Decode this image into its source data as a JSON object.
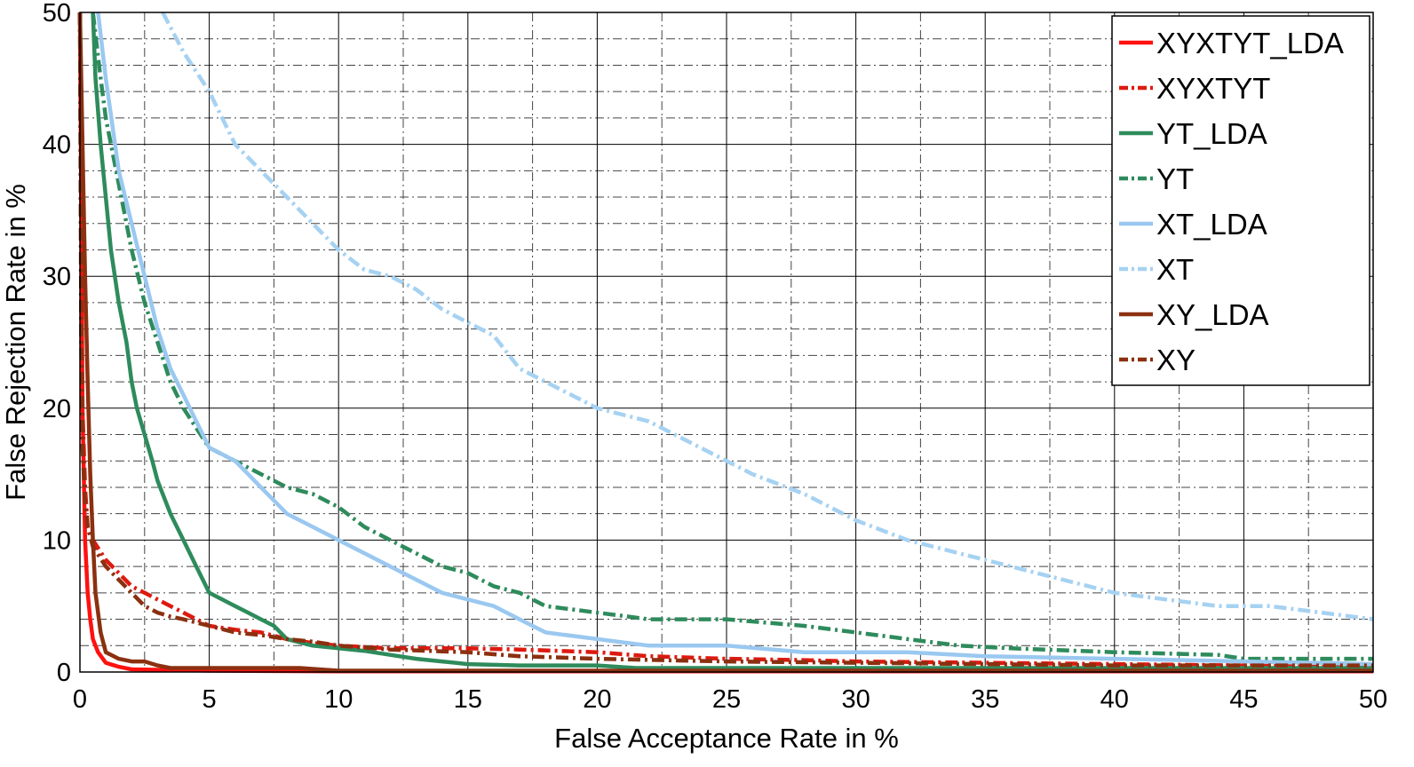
{
  "chart_data": {
    "type": "line",
    "title": "",
    "xlabel": "False Acceptance Rate in %",
    "ylabel": "False Rejection Rate in %",
    "xlim": [
      0,
      50
    ],
    "ylim": [
      0,
      50
    ],
    "xticks": [
      0,
      5,
      10,
      15,
      20,
      25,
      30,
      35,
      40,
      45,
      50
    ],
    "yticks": [
      0,
      10,
      20,
      30,
      40,
      50
    ],
    "grid": true,
    "legend_position": "top-right",
    "series": [
      {
        "name": "XYXTYT_LDA",
        "color": "#ff1010",
        "style": "solid",
        "x": [
          0,
          0.05,
          0.1,
          0.2,
          0.3,
          0.4,
          0.5,
          0.7,
          1.0,
          1.5,
          2.0,
          5.0,
          10,
          20,
          30,
          40,
          50
        ],
        "y": [
          50,
          35,
          20,
          10,
          6,
          4,
          2.5,
          1.5,
          0.7,
          0.4,
          0.2,
          0.1,
          0.05,
          0.05,
          0.05,
          0.05,
          0.05
        ]
      },
      {
        "name": "XYXTYT",
        "color": "#dd1a10",
        "style": "dashdot",
        "x": [
          0,
          0.05,
          0.1,
          0.2,
          0.3,
          0.5,
          1.0,
          1.5,
          2.0,
          2.5,
          3.0,
          3.5,
          4.0,
          5.0,
          6.0,
          7.0,
          8.0,
          9.0,
          10,
          12,
          15,
          17,
          20,
          22,
          25,
          28,
          30,
          35,
          40,
          45,
          50
        ],
        "y": [
          50,
          30,
          20,
          14,
          11,
          10,
          8.5,
          7.5,
          6.5,
          6,
          5.5,
          5,
          4.5,
          3.5,
          3.2,
          3,
          2.5,
          2.2,
          2,
          1.8,
          1.8,
          1.7,
          1.5,
          1.2,
          1,
          0.9,
          0.8,
          0.7,
          0.6,
          0.5,
          0.5
        ]
      },
      {
        "name": "YT_LDA",
        "color": "#2e8b5c",
        "style": "solid",
        "x": [
          0.5,
          0.6,
          0.8,
          1.0,
          1.2,
          1.5,
          1.8,
          2.0,
          2.2,
          2.5,
          2.8,
          3.0,
          3.2,
          3.5,
          4.0,
          4.5,
          5.0,
          5.5,
          6.0,
          6.5,
          7.0,
          7.5,
          8.0,
          9.0,
          10,
          11,
          12,
          13,
          14,
          15,
          17,
          20,
          21.5,
          25,
          30,
          35,
          40,
          45,
          50
        ],
        "y": [
          50,
          45,
          40,
          36,
          32,
          28,
          25,
          22,
          20,
          18,
          16,
          14.5,
          13.5,
          12,
          10,
          8,
          6,
          5.5,
          5,
          4.5,
          4,
          3.5,
          2.5,
          2,
          1.8,
          1.6,
          1.3,
          1.0,
          0.8,
          0.6,
          0.5,
          0.5,
          0.3,
          0.3,
          0.3,
          0.3,
          0.3,
          0.3,
          0.3
        ]
      },
      {
        "name": "YT",
        "color": "#2e8b5c",
        "style": "dashdot",
        "x": [
          0.5,
          0.8,
          1.0,
          1.5,
          2.0,
          2.5,
          3.0,
          3.5,
          4.0,
          4.5,
          5.0,
          5.5,
          6.0,
          6.5,
          7.0,
          7.5,
          8.0,
          9.0,
          10,
          11,
          12,
          13,
          14,
          15,
          16,
          17,
          18,
          20,
          22,
          25,
          28,
          30,
          32,
          34,
          36,
          40,
          44,
          45,
          50
        ],
        "y": [
          50,
          45,
          42,
          37,
          32,
          28,
          25,
          22,
          20,
          18.5,
          17,
          16.5,
          16,
          15.5,
          15,
          14.5,
          14,
          13.5,
          12.5,
          11,
          10,
          9,
          8,
          7.5,
          6.5,
          6,
          5,
          4.5,
          4,
          4,
          3.5,
          3,
          2.5,
          2,
          1.8,
          1.5,
          1.3,
          1.0,
          1.0
        ]
      },
      {
        "name": "XT_LDA",
        "color": "#9ac8f0",
        "style": "solid",
        "x": [
          0.7,
          1.0,
          1.5,
          2.0,
          2.5,
          3.0,
          3.5,
          4.0,
          4.5,
          5.0,
          5.5,
          6.0,
          6.5,
          7.0,
          7.5,
          8.0,
          9.0,
          10,
          11,
          12,
          13,
          14,
          15,
          16,
          17,
          18,
          20,
          22,
          25,
          28,
          30,
          32,
          35,
          40,
          45,
          50
        ],
        "y": [
          50,
          45,
          38,
          34,
          30,
          26,
          23,
          21,
          19,
          17,
          16.5,
          16,
          15,
          14,
          13,
          12,
          11,
          10,
          9,
          8,
          7,
          6,
          5.5,
          5,
          4,
          3,
          2.5,
          2,
          2,
          1.5,
          1.5,
          1.5,
          1.2,
          1,
          0.8,
          0.6
        ]
      },
      {
        "name": "XT",
        "color": "#a6d2f2",
        "style": "dashdot",
        "x": [
          3.2,
          4.0,
          5.0,
          6.0,
          7.0,
          8.0,
          9.0,
          10,
          11,
          12,
          13,
          14,
          15,
          16,
          17,
          18,
          19,
          20,
          22,
          24,
          26,
          28,
          30,
          32,
          34,
          36,
          38,
          40,
          42,
          44,
          46,
          48,
          50
        ],
        "y": [
          50,
          47,
          44,
          40,
          38,
          36,
          34,
          32,
          30.5,
          30,
          29,
          27.5,
          26.5,
          25.5,
          23,
          22,
          21,
          20,
          19,
          17,
          15,
          13.5,
          11.5,
          10,
          9,
          8,
          7,
          6,
          5.5,
          5,
          5,
          4.5,
          4
        ]
      },
      {
        "name": "XY_LDA",
        "color": "#8b3010",
        "style": "solid",
        "x": [
          0,
          0.1,
          0.2,
          0.3,
          0.4,
          0.5,
          0.6,
          0.8,
          1.0,
          1.5,
          2.0,
          2.5,
          3.0,
          3.5,
          5.0,
          8.5,
          10,
          20,
          30,
          40,
          50
        ],
        "y": [
          50,
          40,
          30,
          22,
          15,
          10,
          6,
          3,
          1.5,
          1.0,
          0.8,
          0.8,
          0.5,
          0.3,
          0.3,
          0.3,
          0.1,
          0.1,
          0.1,
          0.1,
          0.1
        ]
      },
      {
        "name": "XY",
        "color": "#8b3010",
        "style": "dashdot",
        "x": [
          0,
          0.05,
          0.1,
          0.2,
          0.3,
          0.5,
          1.0,
          1.5,
          2.0,
          2.5,
          3.0,
          3.5,
          4.0,
          5.0,
          6.0,
          7.0,
          8.0,
          9.0,
          10,
          12,
          15,
          17,
          20,
          25,
          30,
          35,
          40,
          45,
          50
        ],
        "y": [
          50,
          25,
          17,
          13,
          11,
          9.5,
          8,
          7,
          6,
          5,
          4.5,
          4.2,
          4,
          3.5,
          3,
          2.8,
          2.5,
          2.3,
          2,
          1.7,
          1.5,
          1.2,
          1,
          0.8,
          0.7,
          0.6,
          0.5,
          0.5,
          0.5
        ]
      }
    ]
  }
}
